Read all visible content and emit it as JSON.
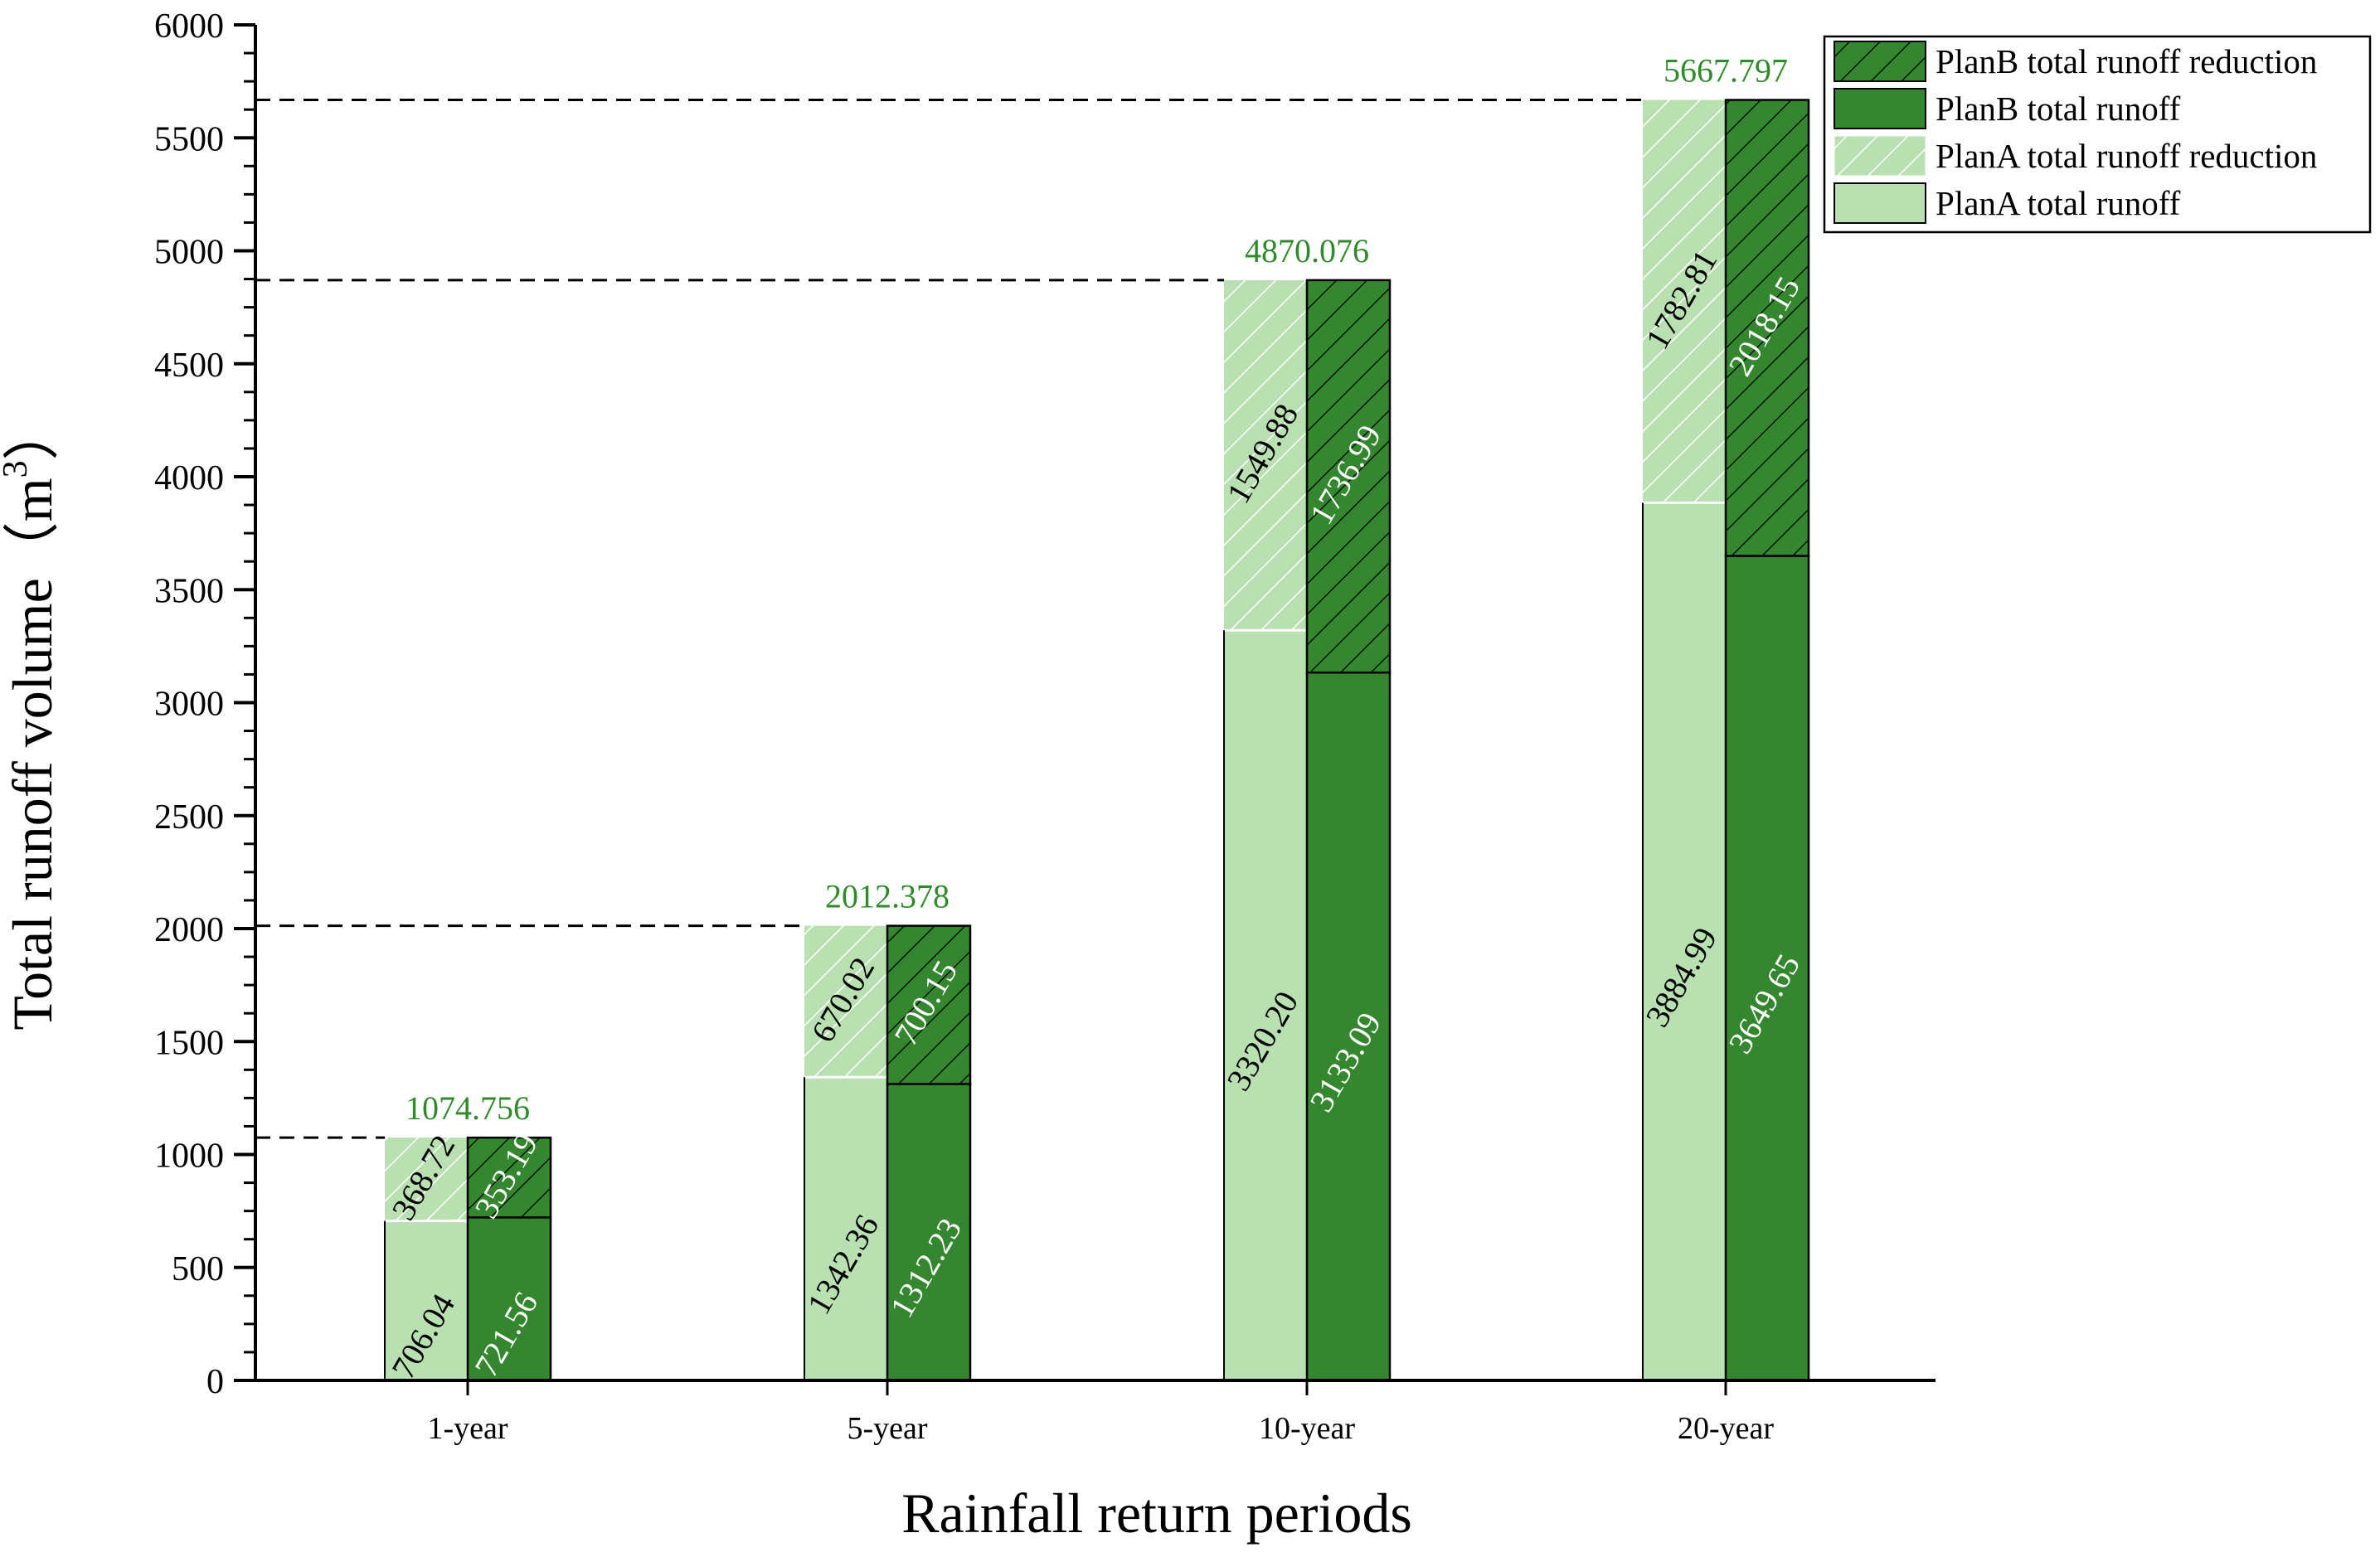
{
  "chart_data": {
    "type": "bar",
    "subtype": "grouped-stacked",
    "categories": [
      "1-year",
      "5-year",
      "10-year",
      "20-year"
    ],
    "xlabel": "Rainfall return periods",
    "ylabel": "Total runoff volume（m",
    "ylabel_sup": "3",
    "ylabel_close": "）",
    "ylim": [
      0,
      6000
    ],
    "yticks": [
      0,
      500,
      1000,
      1500,
      2000,
      2500,
      3000,
      3500,
      4000,
      4500,
      5000,
      5500,
      6000
    ],
    "totals": [
      1074.756,
      2012.378,
      4870.076,
      5667.797
    ],
    "total_labels": [
      "1074.756",
      "2012.378",
      "4870.076",
      "5667.797"
    ],
    "series": [
      {
        "name": "PlanA total runoff",
        "plan": "A",
        "part": "runoff",
        "values": [
          706.04,
          1342.36,
          3320.2,
          3884.99
        ],
        "labels": [
          "706.04",
          "1342.36",
          "3320.20",
          "3884.99"
        ]
      },
      {
        "name": "PlanA total runoff reduction",
        "plan": "A",
        "part": "reduction",
        "values": [
          368.72,
          670.02,
          1549.88,
          1782.81
        ],
        "labels": [
          "368.72",
          "670.02",
          "1549.88",
          "1782.81"
        ]
      },
      {
        "name": "PlanB total runoff",
        "plan": "B",
        "part": "runoff",
        "values": [
          721.56,
          1312.23,
          3133.09,
          3649.65
        ],
        "labels": [
          "721.56",
          "1312.23",
          "3133.09",
          "3649.65"
        ]
      },
      {
        "name": "PlanB total runoff reduction",
        "plan": "B",
        "part": "reduction",
        "values": [
          353.19,
          700.15,
          1736.99,
          2018.15
        ],
        "labels": [
          "353.19",
          "700.15",
          "1736.99",
          "2018.15"
        ]
      }
    ],
    "legend": {
      "position": "top-right",
      "entries": [
        "PlanB total runoff reduction",
        "PlanB total runoff",
        "PlanA total runoff reduction",
        "PlanA total runoff"
      ]
    },
    "reference_lines": "dashed lines at each category total",
    "grid": false
  },
  "colors": {
    "planA": "#b9e0b1",
    "planB": "#34862f",
    "total_label": "#2f8a2a",
    "axis": "#000000"
  }
}
